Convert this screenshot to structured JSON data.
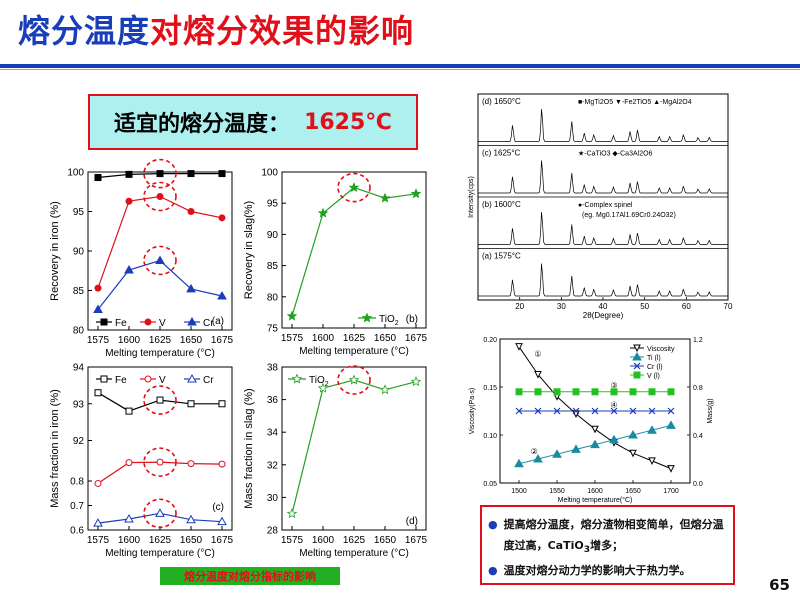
{
  "slide": {
    "title_blue": "熔分温度",
    "title_red": "对熔分效果的影响",
    "temp_label": "适宜的熔分温度：",
    "temp_value": "1625℃",
    "caption": "熔分温度对熔分指标的影响",
    "page_number": "65",
    "bullets": [
      "提高熔分温度，熔分渣物相变简单，但熔分温度过高，CaTiO",
      "3",
      "增多；",
      "温度对熔分动力学的影响大于热力学。"
    ]
  },
  "colors": {
    "title_blue": "#1a3db8",
    "title_red": "#e0101a",
    "fe": "#000000",
    "v": "#e0101a",
    "cr": "#1a3db8",
    "tio2": "#22a022",
    "highlight_circle": "#e0101a"
  },
  "chart_data": [
    {
      "id": "a",
      "type": "line",
      "panel_label": "(a)",
      "xlabel": "Melting temperature (°C)",
      "ylabel": "Recovery in iron (%)",
      "categories": [
        1575,
        1600,
        1625,
        1650,
        1675
      ],
      "x": [
        1575,
        1600,
        1625,
        1650,
        1675
      ],
      "ylim": [
        80,
        100
      ],
      "yticks": [
        80,
        85,
        90,
        95,
        100
      ],
      "series": [
        {
          "name": "Fe",
          "values": [
            99.3,
            99.7,
            99.8,
            99.8,
            99.8
          ],
          "marker": "filled-square"
        },
        {
          "name": "V",
          "values": [
            85.3,
            96.3,
            96.9,
            95.0,
            94.2
          ],
          "marker": "filled-circle"
        },
        {
          "name": "Cr",
          "values": [
            82.6,
            87.6,
            88.8,
            85.2,
            84.3
          ],
          "marker": "filled-triangle"
        }
      ],
      "legend_position": "bottom",
      "highlight_x": 1625
    },
    {
      "id": "b",
      "type": "line",
      "panel_label": "(b)",
      "xlabel": "Melting temperature (°C)",
      "ylabel": "Recovery in slag(%)",
      "x": [
        1575,
        1600,
        1625,
        1650,
        1675
      ],
      "ylim": [
        75,
        100
      ],
      "yticks": [
        75,
        80,
        85,
        90,
        95,
        100
      ],
      "series": [
        {
          "name": "TiO2",
          "values": [
            76.9,
            93.4,
            97.5,
            95.8,
            96.5
          ],
          "marker": "star"
        }
      ],
      "legend_position": "bottom-right",
      "highlight_x": 1625
    },
    {
      "id": "c",
      "type": "line",
      "panel_label": "(c)",
      "xlabel": "Melting temperature (°C)",
      "ylabel": "Mass fraction in iron (%)",
      "x": [
        1575,
        1600,
        1625,
        1650,
        1675
      ],
      "ylim": [
        0.6,
        94
      ],
      "yticks": [
        0.6,
        0.7,
        0.8,
        92,
        93,
        94
      ],
      "series": [
        {
          "name": "Fe",
          "values": [
            93.3,
            92.8,
            93.1,
            93.0,
            93.0
          ],
          "marker": "open-square"
        },
        {
          "name": "V",
          "values": [
            0.79,
            0.875,
            0.877,
            0.871,
            0.869
          ],
          "marker": "open-circle"
        },
        {
          "name": "Cr",
          "values": [
            0.628,
            0.645,
            0.668,
            0.642,
            0.634
          ],
          "marker": "open-triangle"
        }
      ],
      "legend_position": "top",
      "highlight_x": 1625
    },
    {
      "id": "d",
      "type": "line",
      "panel_label": "(d)",
      "xlabel": "Melting temperature (°C)",
      "ylabel": "Mass fraction in slag (%)",
      "x": [
        1575,
        1600,
        1625,
        1650,
        1675
      ],
      "ylim": [
        28,
        38
      ],
      "yticks": [
        28,
        30,
        32,
        34,
        36,
        38
      ],
      "series": [
        {
          "name": "TiO2",
          "values": [
            29.0,
            36.7,
            37.2,
            36.6,
            37.1
          ],
          "marker": "open-star"
        }
      ],
      "legend_position": "top-left",
      "highlight_x": 1625
    },
    {
      "id": "xrd",
      "type": "line",
      "xlabel": "2θ(Degree)",
      "ylabel": "Intensity(cps)",
      "xlim": [
        10,
        70
      ],
      "xticks": [
        20,
        30,
        40,
        50,
        60,
        70
      ],
      "panels": [
        {
          "label": "(d) 1650°C",
          "legend": "■-MgTi2O5 ▼-Fe2TiO5 ▲-MgAl2O4"
        },
        {
          "label": "(c) 1625°C",
          "legend": "★-CaTiO3 ◆-Ca3Al2O6"
        },
        {
          "label": "(b) 1600°C",
          "legend": "●-Complex spinel",
          "legend2": "(eg. Mg0.17Al1.69Cr0.24O32)"
        },
        {
          "label": "(a) 1575°C",
          "legend": ""
        }
      ]
    },
    {
      "id": "viscosity",
      "type": "line",
      "xlabel": "Melting temperature(°C)",
      "ylabel": "Viscosity(Pa·s)",
      "y2label": "Mass(g)",
      "xlim": [
        1475,
        1725
      ],
      "xticks": [
        1500,
        1550,
        1600,
        1650,
        1700
      ],
      "ylim": [
        0.05,
        0.2
      ],
      "yticks": [
        0.05,
        0.1,
        0.15,
        0.2
      ],
      "y2lim": [
        0.0,
        1.2
      ],
      "y2ticks": [
        0.0,
        0.4,
        0.8,
        1.2
      ],
      "x": [
        1500,
        1525,
        1550,
        1575,
        1600,
        1625,
        1650,
        1675,
        1700
      ],
      "series": [
        {
          "name": "Viscosity",
          "axis": "left",
          "marker": "open-triangle-down",
          "values": [
            0.192,
            0.163,
            0.14,
            0.122,
            0.106,
            0.092,
            0.081,
            0.073,
            0.065
          ]
        },
        {
          "name": "Ti (l)",
          "axis": "right",
          "marker": "filled-triangle",
          "values": [
            0.16,
            0.2,
            0.24,
            0.28,
            0.32,
            0.36,
            0.4,
            0.44,
            0.48
          ]
        },
        {
          "name": "Cr (l)",
          "axis": "right",
          "marker": "x",
          "values": [
            0.6,
            0.6,
            0.6,
            0.6,
            0.6,
            0.6,
            0.6,
            0.6,
            0.6
          ]
        },
        {
          "name": "V (l)",
          "axis": "right",
          "marker": "filled-square",
          "values": [
            0.76,
            0.76,
            0.76,
            0.76,
            0.76,
            0.76,
            0.76,
            0.76,
            0.76
          ]
        }
      ],
      "annotations": [
        "①",
        "②",
        "③",
        "④"
      ],
      "legend_position": "top-right"
    }
  ]
}
